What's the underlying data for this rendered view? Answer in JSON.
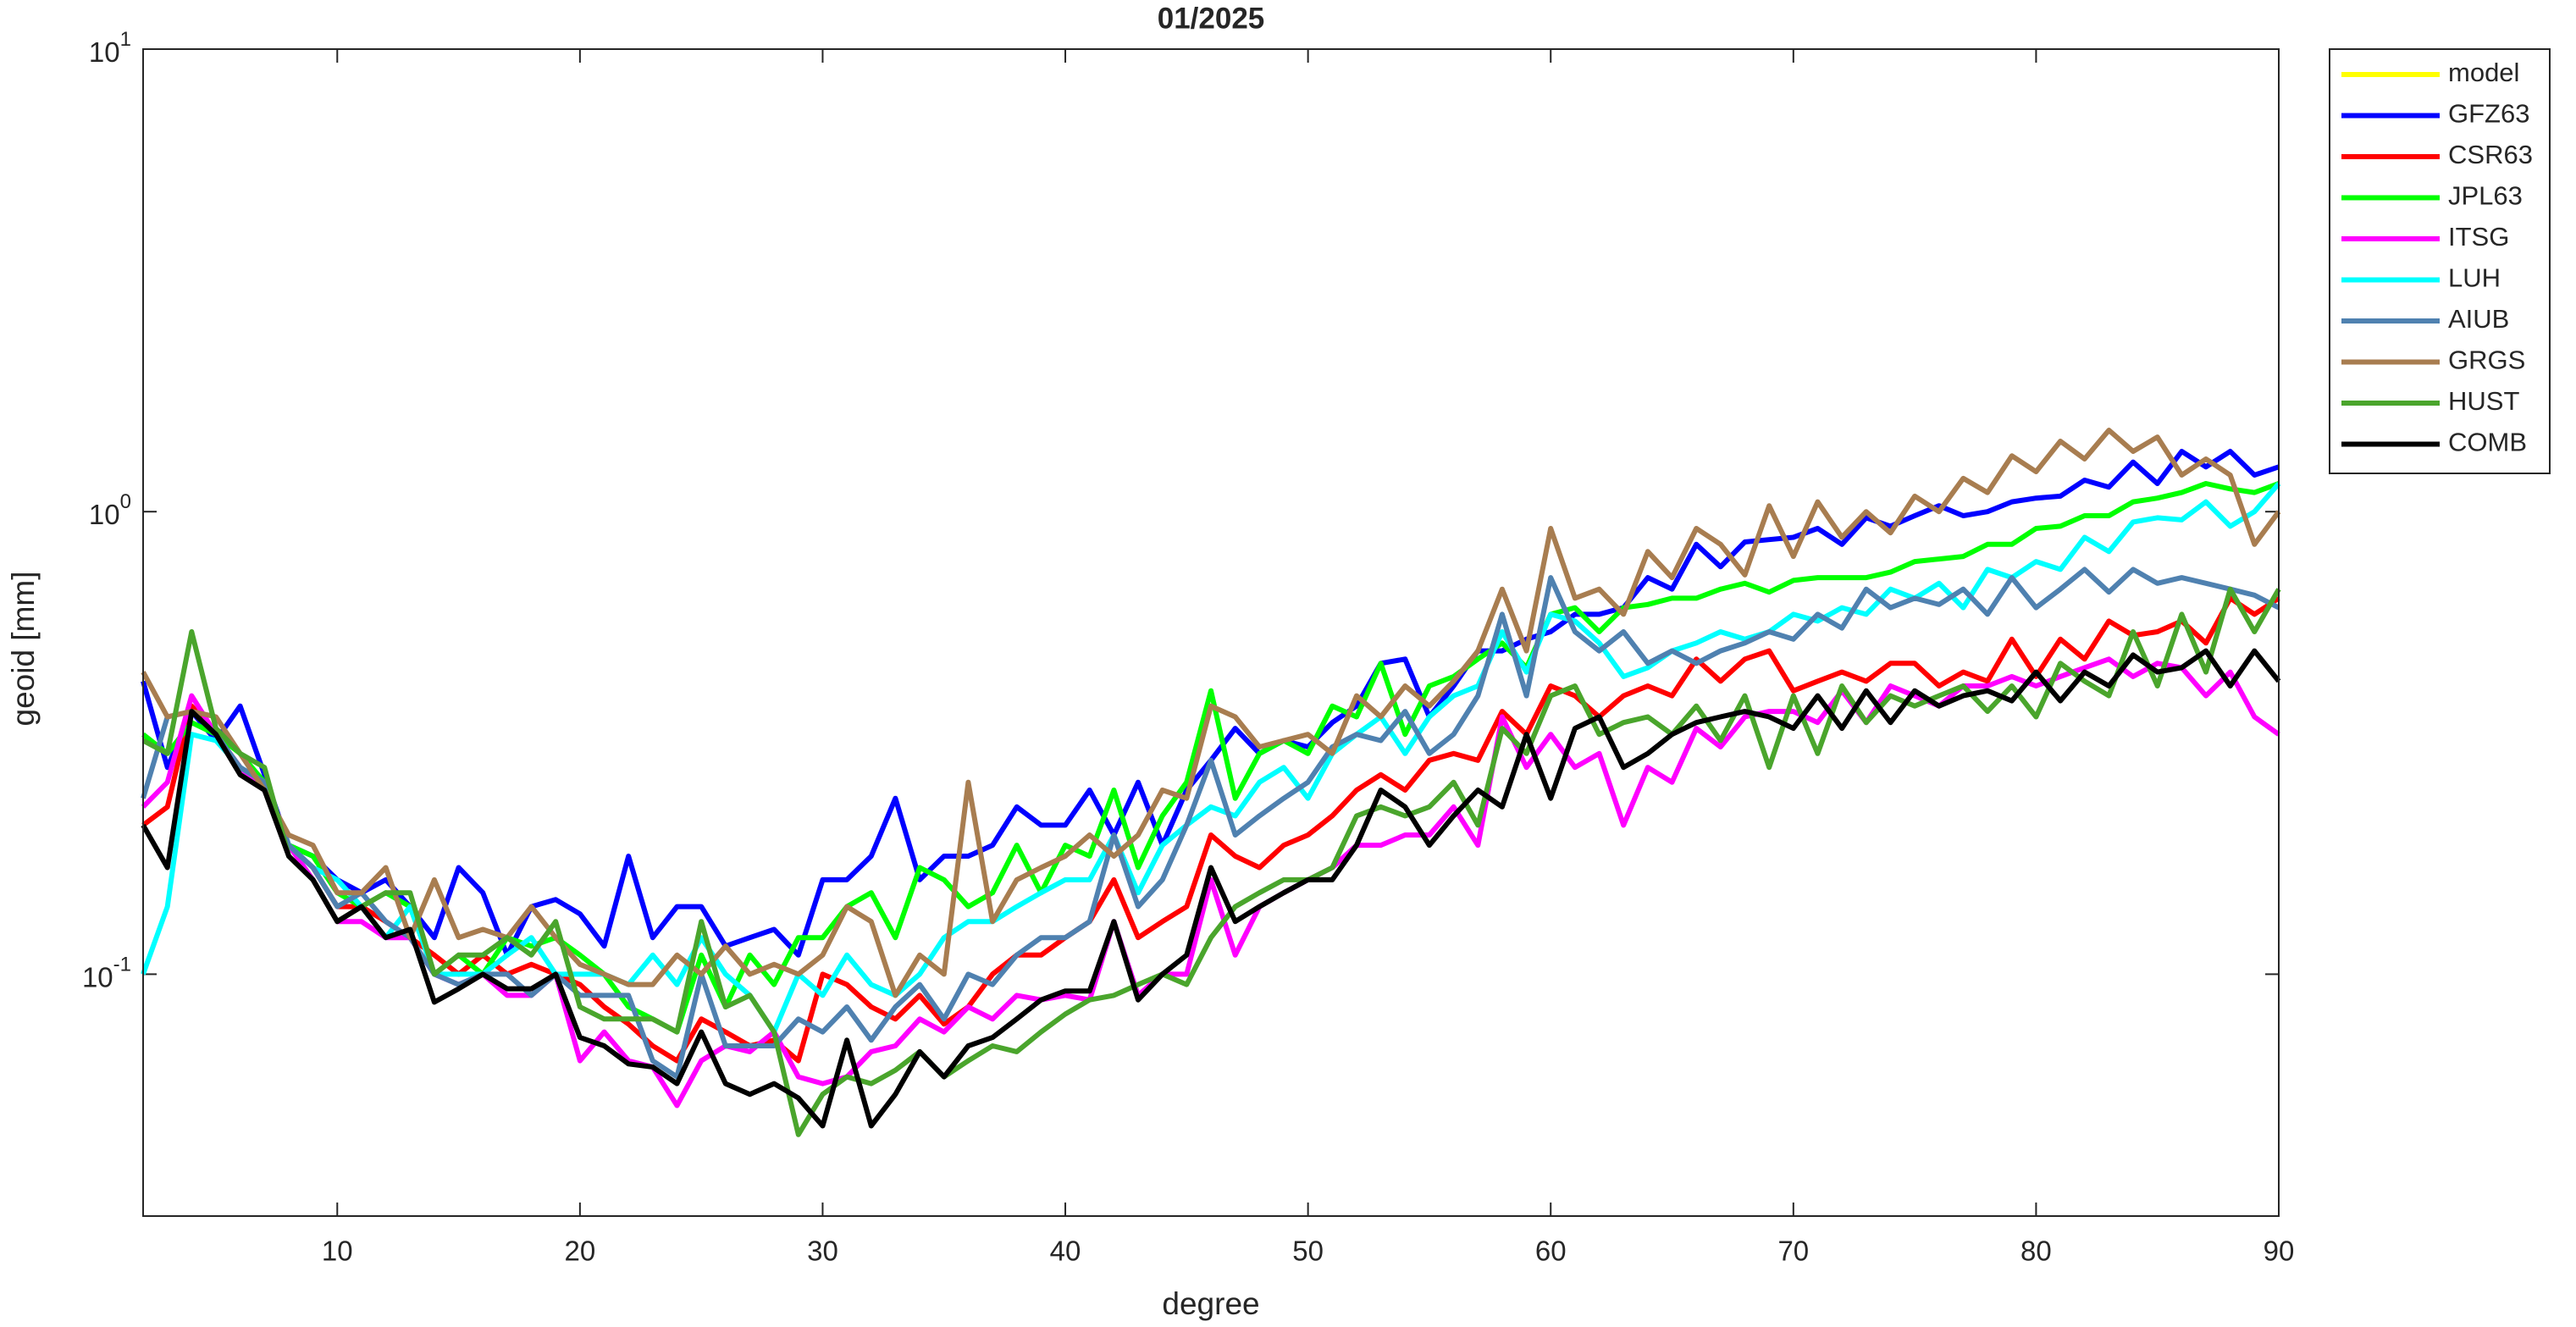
{
  "chart_data": {
    "type": "line",
    "title": "01/2025",
    "xlabel": "degree",
    "ylabel": "geoid [mm]",
    "log_y": true,
    "legend": "northeastoutside",
    "xlim": [
      2,
      90
    ],
    "xticks": [
      10,
      20,
      30,
      40,
      50,
      60,
      70,
      80,
      90
    ],
    "ylim": [
      0.03,
      10
    ],
    "yticks": [
      {
        "value": 0.1,
        "label": "10",
        "exponent": "-1"
      },
      {
        "value": 1,
        "label": "10",
        "exponent": "0"
      },
      {
        "value": 10,
        "label": "10",
        "exponent": "1"
      }
    ],
    "x": [
      2,
      3,
      4,
      5,
      6,
      7,
      8,
      9,
      10,
      11,
      12,
      13,
      14,
      15,
      16,
      17,
      18,
      19,
      20,
      21,
      22,
      23,
      24,
      25,
      26,
      27,
      28,
      29,
      30,
      31,
      32,
      33,
      34,
      35,
      36,
      37,
      38,
      39,
      40,
      41,
      42,
      43,
      44,
      45,
      46,
      47,
      48,
      49,
      50,
      51,
      52,
      53,
      54,
      55,
      56,
      57,
      58,
      59,
      60,
      61,
      62,
      63,
      64,
      65,
      66,
      67,
      68,
      69,
      70,
      71,
      72,
      73,
      74,
      75,
      76,
      77,
      78,
      79,
      80,
      81,
      82,
      83,
      84,
      85,
      86,
      87,
      88,
      89,
      90
    ],
    "series": [
      {
        "name": "model",
        "color": "#ffff00",
        "values": [
          null,
          null,
          null,
          null,
          null,
          null,
          null,
          null,
          null,
          null,
          null,
          null,
          null,
          null,
          null,
          null,
          null,
          null,
          null,
          null,
          null,
          null,
          null,
          null,
          null,
          null,
          null,
          null,
          null,
          null,
          null,
          null,
          null,
          null,
          null,
          null,
          null,
          null,
          null,
          null,
          null,
          null,
          null,
          null,
          null,
          null,
          null,
          null,
          null,
          null,
          null,
          null,
          null,
          null,
          null,
          null,
          null,
          null,
          null,
          null,
          null,
          null,
          null,
          null,
          null,
          null,
          null,
          null,
          null,
          null,
          null,
          null,
          null,
          null,
          null,
          null,
          null,
          null,
          null,
          null,
          null,
          null,
          null,
          null,
          null,
          null,
          null,
          null,
          null
        ]
      },
      {
        "name": "GFZ63",
        "color": "#0000ff",
        "values": [
          0.43,
          0.28,
          0.37,
          0.32,
          0.38,
          0.27,
          0.19,
          0.18,
          0.16,
          0.15,
          0.16,
          0.14,
          0.12,
          0.17,
          0.15,
          0.11,
          0.14,
          0.145,
          0.135,
          0.115,
          0.18,
          0.12,
          0.14,
          0.14,
          0.115,
          0.12,
          0.125,
          0.11,
          0.16,
          0.16,
          0.18,
          0.24,
          0.16,
          0.18,
          0.18,
          0.19,
          0.23,
          0.21,
          0.21,
          0.25,
          0.2,
          0.26,
          0.19,
          0.25,
          0.29,
          0.34,
          0.3,
          0.32,
          0.31,
          0.35,
          0.38,
          0.47,
          0.48,
          0.36,
          0.42,
          0.5,
          0.5,
          0.53,
          0.55,
          0.6,
          0.6,
          0.62,
          0.72,
          0.68,
          0.85,
          0.76,
          0.86,
          0.87,
          0.88,
          0.92,
          0.85,
          0.97,
          0.93,
          0.98,
          1.03,
          0.98,
          1.0,
          1.05,
          1.07,
          1.08,
          1.17,
          1.13,
          1.28,
          1.15,
          1.35,
          1.25,
          1.35,
          1.2,
          1.25
        ]
      },
      {
        "name": "CSR63",
        "color": "#ff0000",
        "values": [
          0.21,
          0.23,
          0.38,
          0.33,
          0.28,
          0.25,
          0.19,
          0.17,
          0.14,
          0.14,
          0.13,
          0.12,
          0.11,
          0.1,
          0.11,
          0.1,
          0.105,
          0.1,
          0.095,
          0.085,
          0.078,
          0.07,
          0.065,
          0.08,
          0.075,
          0.07,
          0.072,
          0.065,
          0.1,
          0.095,
          0.085,
          0.08,
          0.09,
          0.078,
          0.085,
          0.1,
          0.11,
          0.11,
          0.12,
          0.13,
          0.16,
          0.12,
          0.13,
          0.14,
          0.2,
          0.18,
          0.17,
          0.19,
          0.2,
          0.22,
          0.25,
          0.27,
          0.25,
          0.29,
          0.3,
          0.29,
          0.37,
          0.33,
          0.42,
          0.4,
          0.36,
          0.4,
          0.42,
          0.4,
          0.48,
          0.43,
          0.48,
          0.5,
          0.41,
          0.43,
          0.45,
          0.43,
          0.47,
          0.47,
          0.42,
          0.45,
          0.43,
          0.53,
          0.44,
          0.53,
          0.48,
          0.58,
          0.54,
          0.55,
          0.58,
          0.52,
          0.65,
          0.6,
          0.65
        ]
      },
      {
        "name": "JPL63",
        "color": "#00ff00",
        "values": [
          0.33,
          0.3,
          0.35,
          0.33,
          0.3,
          0.26,
          0.19,
          0.18,
          0.15,
          0.14,
          0.15,
          0.14,
          0.1,
          0.11,
          0.1,
          0.12,
          0.115,
          0.12,
          0.11,
          0.1,
          0.085,
          0.08,
          0.075,
          0.11,
          0.085,
          0.11,
          0.095,
          0.12,
          0.12,
          0.14,
          0.15,
          0.12,
          0.17,
          0.16,
          0.14,
          0.15,
          0.19,
          0.15,
          0.19,
          0.18,
          0.25,
          0.17,
          0.22,
          0.26,
          0.41,
          0.24,
          0.3,
          0.32,
          0.3,
          0.38,
          0.36,
          0.47,
          0.33,
          0.42,
          0.44,
          0.48,
          0.52,
          0.46,
          0.6,
          0.62,
          0.55,
          0.62,
          0.63,
          0.65,
          0.65,
          0.68,
          0.7,
          0.67,
          0.71,
          0.72,
          0.72,
          0.72,
          0.74,
          0.78,
          0.79,
          0.8,
          0.85,
          0.85,
          0.92,
          0.93,
          0.98,
          0.98,
          1.05,
          1.07,
          1.1,
          1.15,
          1.12,
          1.1,
          1.15
        ]
      },
      {
        "name": "ITSG",
        "color": "#ff00ff",
        "values": [
          0.23,
          0.26,
          0.4,
          0.33,
          0.28,
          0.25,
          0.19,
          0.16,
          0.13,
          0.13,
          0.12,
          0.12,
          0.1,
          0.095,
          0.1,
          0.09,
          0.09,
          0.1,
          0.065,
          0.075,
          0.065,
          0.063,
          0.052,
          0.065,
          0.07,
          0.068,
          0.075,
          0.06,
          0.058,
          0.06,
          0.068,
          0.07,
          0.08,
          0.075,
          0.085,
          0.08,
          0.09,
          0.088,
          0.09,
          0.088,
          0.13,
          0.09,
          0.1,
          0.1,
          0.16,
          0.11,
          0.14,
          0.15,
          0.16,
          0.17,
          0.19,
          0.19,
          0.2,
          0.2,
          0.23,
          0.19,
          0.36,
          0.28,
          0.33,
          0.28,
          0.3,
          0.21,
          0.28,
          0.26,
          0.34,
          0.31,
          0.36,
          0.37,
          0.37,
          0.35,
          0.41,
          0.35,
          0.42,
          0.4,
          0.38,
          0.42,
          0.42,
          0.44,
          0.42,
          0.44,
          0.46,
          0.48,
          0.44,
          0.47,
          0.46,
          0.4,
          0.45,
          0.36,
          0.33
        ]
      },
      {
        "name": "LUH",
        "color": "#00ffff",
        "values": [
          0.1,
          0.14,
          0.33,
          0.32,
          0.28,
          0.26,
          0.19,
          0.17,
          0.16,
          0.14,
          0.12,
          0.14,
          0.1,
          0.1,
          0.1,
          0.11,
          0.12,
          0.1,
          0.1,
          0.1,
          0.095,
          0.11,
          0.095,
          0.12,
          0.1,
          0.09,
          0.075,
          0.1,
          0.09,
          0.11,
          0.095,
          0.09,
          0.1,
          0.12,
          0.13,
          0.13,
          0.14,
          0.15,
          0.16,
          0.16,
          0.2,
          0.15,
          0.19,
          0.21,
          0.23,
          0.22,
          0.26,
          0.28,
          0.24,
          0.3,
          0.33,
          0.36,
          0.3,
          0.36,
          0.4,
          0.42,
          0.55,
          0.45,
          0.6,
          0.58,
          0.52,
          0.44,
          0.46,
          0.5,
          0.52,
          0.55,
          0.53,
          0.55,
          0.6,
          0.58,
          0.62,
          0.6,
          0.68,
          0.65,
          0.7,
          0.62,
          0.75,
          0.72,
          0.78,
          0.75,
          0.88,
          0.82,
          0.95,
          0.97,
          0.96,
          1.05,
          0.93,
          1.0,
          1.15
        ]
      },
      {
        "name": "AIUB",
        "color": "#4f81b0",
        "values": [
          0.24,
          0.36,
          0.37,
          0.33,
          0.28,
          0.26,
          0.19,
          0.17,
          0.14,
          0.15,
          0.13,
          0.12,
          0.1,
          0.095,
          0.1,
          0.1,
          0.09,
          0.1,
          0.09,
          0.09,
          0.09,
          0.065,
          0.06,
          0.1,
          0.07,
          0.07,
          0.07,
          0.08,
          0.075,
          0.085,
          0.072,
          0.085,
          0.095,
          0.08,
          0.1,
          0.095,
          0.11,
          0.12,
          0.12,
          0.13,
          0.2,
          0.14,
          0.16,
          0.21,
          0.29,
          0.2,
          0.22,
          0.24,
          0.26,
          0.31,
          0.33,
          0.32,
          0.37,
          0.3,
          0.33,
          0.4,
          0.6,
          0.4,
          0.72,
          0.55,
          0.5,
          0.55,
          0.47,
          0.5,
          0.47,
          0.5,
          0.52,
          0.55,
          0.53,
          0.6,
          0.56,
          0.68,
          0.62,
          0.65,
          0.63,
          0.68,
          0.6,
          0.72,
          0.62,
          0.68,
          0.75,
          0.67,
          0.75,
          0.7,
          0.72,
          0.7,
          0.68,
          0.66,
          0.62
        ]
      },
      {
        "name": "GRGS",
        "color": "#a87d50",
        "values": [
          0.45,
          0.36,
          0.37,
          0.36,
          0.3,
          0.25,
          0.2,
          0.19,
          0.15,
          0.15,
          0.17,
          0.12,
          0.16,
          0.12,
          0.125,
          0.12,
          0.14,
          0.12,
          0.105,
          0.1,
          0.095,
          0.095,
          0.11,
          0.1,
          0.115,
          0.1,
          0.105,
          0.1,
          0.11,
          0.14,
          0.13,
          0.09,
          0.11,
          0.1,
          0.26,
          0.13,
          0.16,
          0.17,
          0.18,
          0.2,
          0.18,
          0.2,
          0.25,
          0.24,
          0.38,
          0.36,
          0.31,
          0.32,
          0.33,
          0.3,
          0.4,
          0.36,
          0.42,
          0.38,
          0.43,
          0.5,
          0.68,
          0.5,
          0.92,
          0.65,
          0.68,
          0.6,
          0.82,
          0.72,
          0.92,
          0.85,
          0.73,
          1.03,
          0.8,
          1.05,
          0.88,
          1.0,
          0.9,
          1.08,
          1.0,
          1.18,
          1.1,
          1.32,
          1.22,
          1.42,
          1.3,
          1.5,
          1.35,
          1.45,
          1.2,
          1.3,
          1.2,
          0.85,
          1.0
        ]
      },
      {
        "name": "HUST",
        "color": "#4aa52c",
        "values": [
          0.32,
          0.3,
          0.55,
          0.34,
          0.3,
          0.28,
          0.18,
          0.16,
          0.13,
          0.14,
          0.15,
          0.15,
          0.1,
          0.11,
          0.11,
          0.12,
          0.11,
          0.13,
          0.085,
          0.08,
          0.08,
          0.08,
          0.075,
          0.13,
          0.085,
          0.09,
          0.075,
          0.045,
          0.055,
          0.06,
          0.058,
          0.062,
          0.068,
          0.06,
          0.065,
          0.07,
          0.068,
          0.075,
          0.082,
          0.088,
          0.09,
          0.095,
          0.1,
          0.095,
          0.12,
          0.14,
          0.15,
          0.16,
          0.16,
          0.17,
          0.22,
          0.23,
          0.22,
          0.23,
          0.26,
          0.21,
          0.34,
          0.3,
          0.4,
          0.42,
          0.33,
          0.35,
          0.36,
          0.33,
          0.38,
          0.32,
          0.4,
          0.28,
          0.4,
          0.3,
          0.42,
          0.35,
          0.4,
          0.38,
          0.4,
          0.42,
          0.37,
          0.42,
          0.36,
          0.47,
          0.43,
          0.4,
          0.55,
          0.42,
          0.6,
          0.45,
          0.68,
          0.55,
          0.68
        ]
      },
      {
        "name": "COMB",
        "color": "#000000",
        "values": [
          0.21,
          0.17,
          0.37,
          0.33,
          0.27,
          0.25,
          0.18,
          0.16,
          0.13,
          0.14,
          0.12,
          0.125,
          0.087,
          0.093,
          0.1,
          0.093,
          0.093,
          0.1,
          0.073,
          0.07,
          0.064,
          0.063,
          0.058,
          0.075,
          0.058,
          0.055,
          0.058,
          0.054,
          0.047,
          0.072,
          0.047,
          0.055,
          0.068,
          0.06,
          0.07,
          0.073,
          0.08,
          0.088,
          0.092,
          0.092,
          0.13,
          0.088,
          0.1,
          0.11,
          0.17,
          0.13,
          0.14,
          0.15,
          0.16,
          0.16,
          0.19,
          0.25,
          0.23,
          0.19,
          0.22,
          0.25,
          0.23,
          0.33,
          0.24,
          0.34,
          0.36,
          0.28,
          0.3,
          0.33,
          0.35,
          0.36,
          0.37,
          0.36,
          0.34,
          0.4,
          0.34,
          0.41,
          0.35,
          0.41,
          0.38,
          0.4,
          0.41,
          0.39,
          0.45,
          0.39,
          0.45,
          0.42,
          0.49,
          0.45,
          0.46,
          0.5,
          0.42,
          0.5,
          0.43
        ]
      }
    ]
  }
}
